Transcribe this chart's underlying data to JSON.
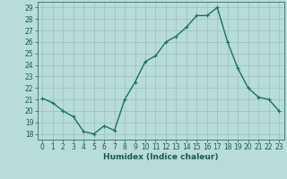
{
  "x": [
    0,
    1,
    2,
    3,
    4,
    5,
    6,
    7,
    8,
    9,
    10,
    11,
    12,
    13,
    14,
    15,
    16,
    17,
    18,
    19,
    20,
    21,
    22,
    23
  ],
  "y": [
    21.1,
    20.7,
    20.0,
    19.5,
    18.2,
    18.0,
    18.7,
    18.3,
    21.0,
    22.5,
    24.3,
    24.8,
    26.0,
    26.5,
    27.3,
    28.3,
    28.3,
    29.0,
    26.0,
    23.7,
    22.0,
    21.2,
    21.0,
    20.0
  ],
  "line_color": "#1a7060",
  "marker": "+",
  "bg_color": "#b8ddd8",
  "grid_color": "#9abfba",
  "xlabel": "Humidex (Indice chaleur)",
  "ylim": [
    17.5,
    29.5
  ],
  "xlim": [
    -0.5,
    23.5
  ],
  "yticks": [
    18,
    19,
    20,
    21,
    22,
    23,
    24,
    25,
    26,
    27,
    28,
    29
  ],
  "xticks": [
    0,
    1,
    2,
    3,
    4,
    5,
    6,
    7,
    8,
    9,
    10,
    11,
    12,
    13,
    14,
    15,
    16,
    17,
    18,
    19,
    20,
    21,
    22,
    23
  ],
  "xtick_labels": [
    "0",
    "1",
    "2",
    "3",
    "4",
    "5",
    "6",
    "7",
    "8",
    "9",
    "10",
    "11",
    "12",
    "13",
    "14",
    "15",
    "16",
    "17",
    "18",
    "19",
    "20",
    "21",
    "22",
    "23"
  ],
  "font_color": "#1a5a4a",
  "linewidth": 1.0,
  "markersize": 3.5,
  "tick_fontsize": 5.5,
  "xlabel_fontsize": 6.5
}
